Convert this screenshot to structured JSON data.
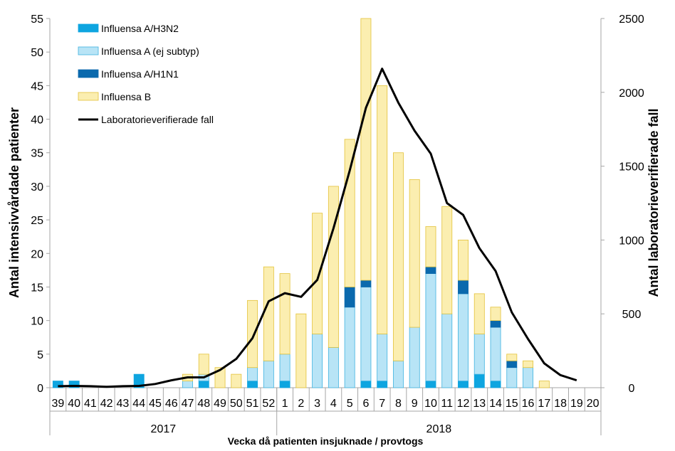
{
  "chart_data": {
    "type": "bar",
    "stacked": true,
    "categories": [
      "39",
      "40",
      "41",
      "42",
      "43",
      "44",
      "45",
      "46",
      "47",
      "48",
      "49",
      "50",
      "51",
      "52",
      "1",
      "2",
      "3",
      "4",
      "5",
      "6",
      "7",
      "8",
      "9",
      "10",
      "11",
      "12",
      "13",
      "14",
      "15",
      "16",
      "17",
      "18",
      "19",
      "20"
    ],
    "year_groups": [
      {
        "label": "2017",
        "from": "39",
        "to": "52"
      },
      {
        "label": "2018",
        "from": "1",
        "to": "20"
      }
    ],
    "xlabel": "Vecka då patienten insjuknade / provtogs",
    "ylabel": "Antal intensivvårdade patienter",
    "ylabel_right": "Antal laboratorieverifierade fall",
    "ylim": [
      0,
      55
    ],
    "yticks": [
      0,
      5,
      10,
      15,
      20,
      25,
      30,
      35,
      40,
      45,
      50,
      55
    ],
    "ylim_right": [
      0,
      2500
    ],
    "yticks_right": [
      0,
      500,
      1000,
      1500,
      2000,
      2500
    ],
    "legend_position": "top-left",
    "series": [
      {
        "name": "Influensa A/H3N2",
        "axis": "left",
        "kind": "bar",
        "color": "#0ea5e0",
        "values": [
          1,
          1,
          0,
          0,
          0,
          2,
          0,
          0,
          0,
          1,
          0,
          0,
          1,
          0,
          1,
          0,
          0,
          0,
          0,
          1,
          1,
          0,
          0,
          1,
          0,
          1,
          2,
          1,
          0,
          0,
          0,
          0,
          0,
          0
        ]
      },
      {
        "name": "Influensa A (ej subtyp)",
        "axis": "left",
        "kind": "bar",
        "color": "#b8e4f6",
        "values": [
          0,
          0,
          0,
          0,
          0,
          0,
          0,
          0,
          1,
          1,
          0,
          0,
          2,
          4,
          4,
          0,
          8,
          6,
          12,
          14,
          7,
          4,
          9,
          16,
          11,
          13,
          6,
          8,
          3,
          3,
          0,
          0,
          0,
          0
        ]
      },
      {
        "name": "Influensa A/H1N1",
        "axis": "left",
        "kind": "bar",
        "color": "#0a69ad",
        "values": [
          0,
          0,
          0,
          0,
          0,
          0,
          0,
          0,
          0,
          0,
          0,
          0,
          0,
          0,
          0,
          0,
          0,
          0,
          3,
          1,
          0,
          0,
          0,
          1,
          0,
          2,
          0,
          1,
          1,
          0,
          0,
          0,
          0,
          0
        ]
      },
      {
        "name": "Influensa B",
        "axis": "left",
        "kind": "bar",
        "color": "#fbeeb0",
        "values": [
          0,
          0,
          0,
          0,
          0,
          0,
          0,
          0,
          1,
          3,
          3,
          2,
          10,
          14,
          12,
          11,
          18,
          24,
          22,
          39,
          37,
          31,
          22,
          6,
          16,
          6,
          6,
          2,
          1,
          1,
          1,
          0,
          0,
          0
        ]
      },
      {
        "name": "Laboratorieverifierade fall",
        "axis": "right",
        "kind": "line",
        "color": "#000000",
        "values": [
          10,
          12,
          10,
          6,
          10,
          12,
          25,
          50,
          70,
          70,
          120,
          195,
          335,
          585,
          640,
          615,
          730,
          1080,
          1470,
          1895,
          2160,
          1930,
          1740,
          1585,
          1250,
          1170,
          945,
          790,
          510,
          330,
          165,
          85,
          50,
          null
        ]
      }
    ]
  }
}
